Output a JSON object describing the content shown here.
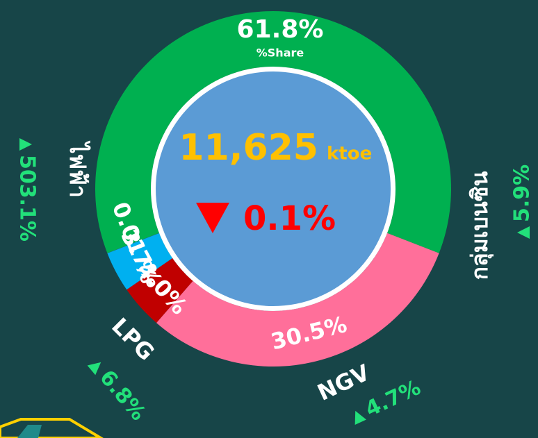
{
  "chart_data": {
    "type": "donut",
    "center_value": 11625,
    "center_value_label": "11,625",
    "center_unit": "ktoe",
    "center_change": 0.1,
    "center_change_label": "0.1%",
    "center_change_direction": "down",
    "share_label": "%Share",
    "categories": [
      null,
      "กลุ่มเบนซิน",
      "NGV",
      "LPG",
      "ไฟฟ้า"
    ],
    "values": [
      61.8,
      30.5,
      4,
      3.7,
      0.01
    ],
    "value_labels": [
      "61.8%",
      "30.5%",
      "4.0%",
      "3.7%",
      "0.01 %"
    ],
    "colors": [
      "#00b050",
      "#ff6f9a",
      "#c00000",
      "#00b0f0",
      "#7030a0"
    ],
    "changes": [
      null,
      5.9,
      4.7,
      6.8,
      503.1
    ],
    "change_labels": [
      null,
      "5.9%",
      "4.7%",
      "6.8%",
      "503.1%"
    ],
    "change_direction": "up"
  }
}
